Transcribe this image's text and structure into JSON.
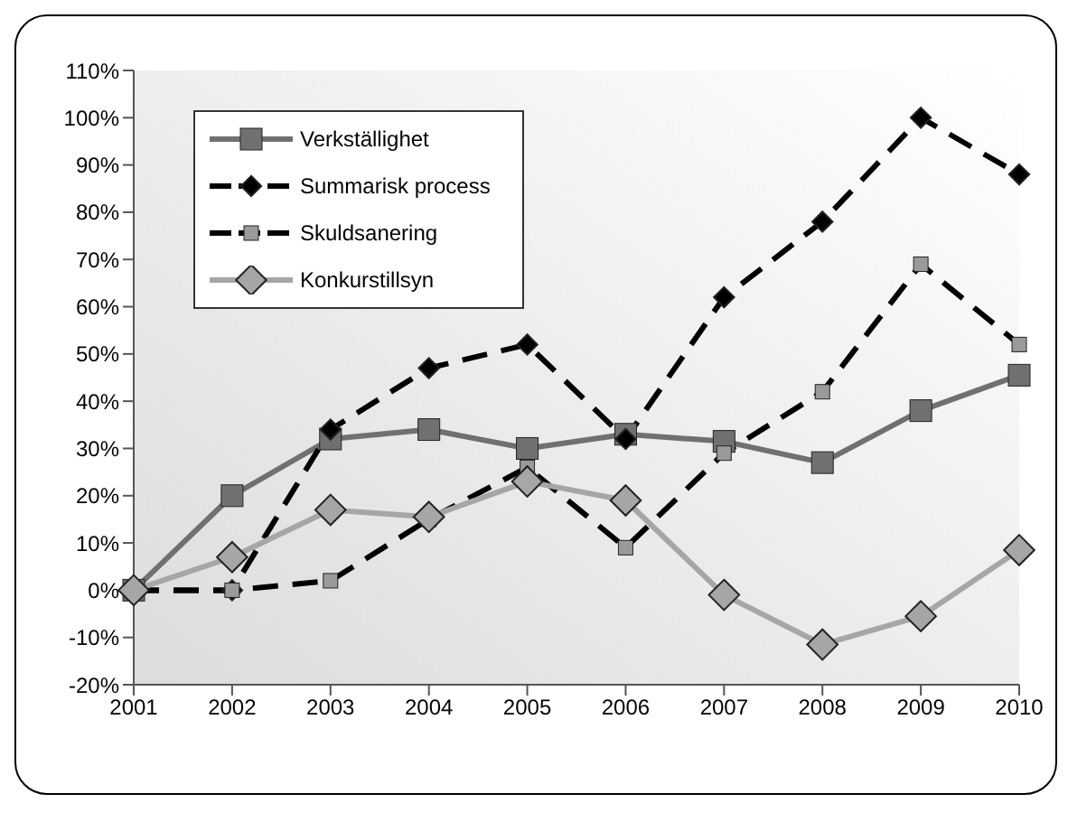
{
  "chart_data": {
    "type": "line",
    "categories": [
      "2001",
      "2002",
      "2003",
      "2004",
      "2005",
      "2006",
      "2007",
      "2008",
      "2009",
      "2010"
    ],
    "series": [
      {
        "name": "Verkställighet",
        "color": "#707070",
        "marker": "square",
        "line_style": "solid",
        "values": [
          0,
          20,
          32,
          34,
          30,
          33,
          31.5,
          27,
          38,
          45.5
        ]
      },
      {
        "name": "Summarisk process",
        "color": "#000000",
        "marker": "diamond",
        "line_style": "dashed",
        "values": [
          0,
          0,
          34,
          47,
          52,
          32,
          62,
          78,
          100,
          88
        ]
      },
      {
        "name": "Skuldsanering",
        "color": "#000000",
        "marker": "square",
        "line_style": "dashed",
        "values": [
          0,
          0,
          2,
          15,
          26,
          9,
          29,
          42,
          69,
          52
        ]
      },
      {
        "name": "Konkurstillsyn",
        "color": "#a6a6a6",
        "marker": "diamond",
        "line_style": "solid",
        "values": [
          0,
          7,
          17,
          15.5,
          23,
          19,
          -1,
          -11.5,
          -5.5,
          8.5
        ]
      }
    ],
    "ylim": [
      -20,
      110
    ],
    "yticks": [
      {
        "value": -20,
        "label": "-20%"
      },
      {
        "value": -10,
        "label": "-10%"
      },
      {
        "value": 0,
        "label": "0%"
      },
      {
        "value": 10,
        "label": "10%"
      },
      {
        "value": 20,
        "label": "20%"
      },
      {
        "value": 30,
        "label": "30%"
      },
      {
        "value": 40,
        "label": "40%"
      },
      {
        "value": 50,
        "label": "50%"
      },
      {
        "value": 60,
        "label": "60%"
      },
      {
        "value": 70,
        "label": "70%"
      },
      {
        "value": 80,
        "label": "80%"
      },
      {
        "value": 90,
        "label": "90%"
      },
      {
        "value": 100,
        "label": "100%"
      },
      {
        "value": 110,
        "label": "110%"
      }
    ],
    "grid": false,
    "legend": "top left"
  }
}
